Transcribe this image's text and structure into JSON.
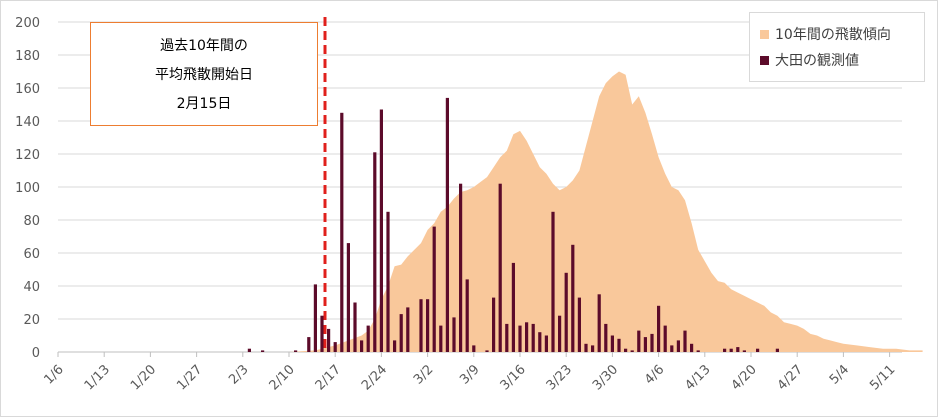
{
  "chart_data": {
    "type": "bar",
    "title": "",
    "xlabel": "",
    "ylabel": "",
    "ylim": [
      0,
      200
    ],
    "y_ticks": [
      0,
      20,
      40,
      60,
      80,
      100,
      120,
      140,
      160,
      180,
      200
    ],
    "x_ticks": [
      "1/6",
      "1/13",
      "1/20",
      "1/27",
      "2/3",
      "2/10",
      "2/17",
      "2/24",
      "3/2",
      "3/9",
      "3/16",
      "3/23",
      "3/30",
      "4/6",
      "4/13",
      "4/20",
      "4/27",
      "5/4",
      "5/11"
    ],
    "x_tick_rotation_deg": -45,
    "grid": "horizontal",
    "legend_position": "top-right",
    "colors": {
      "area": "#f9c89b",
      "bar": "#5c0b2a",
      "marker_line": "#e0201c",
      "annotation_border": "#ed7d31"
    },
    "series": [
      {
        "name": "10年間の飛散傾向",
        "type": "area",
        "values": [
          {
            "date": "1/6",
            "value": 0
          },
          {
            "date": "2/10",
            "value": 0
          },
          {
            "date": "2/14",
            "value": 1
          },
          {
            "date": "2/17",
            "value": 4
          },
          {
            "date": "2/21",
            "value": 10
          },
          {
            "date": "2/22",
            "value": 13
          },
          {
            "date": "2/23",
            "value": 20
          },
          {
            "date": "2/24",
            "value": 32
          },
          {
            "date": "2/25",
            "value": 40
          },
          {
            "date": "2/26",
            "value": 52
          },
          {
            "date": "2/27",
            "value": 53
          },
          {
            "date": "2/28",
            "value": 58
          },
          {
            "date": "3/1",
            "value": 66
          },
          {
            "date": "3/2",
            "value": 74
          },
          {
            "date": "3/3",
            "value": 78
          },
          {
            "date": "3/4",
            "value": 85
          },
          {
            "date": "3/5",
            "value": 88
          },
          {
            "date": "3/6",
            "value": 93
          },
          {
            "date": "3/7",
            "value": 97
          },
          {
            "date": "3/8",
            "value": 98
          },
          {
            "date": "3/9",
            "value": 100
          },
          {
            "date": "3/10",
            "value": 103
          },
          {
            "date": "3/11",
            "value": 106
          },
          {
            "date": "3/12",
            "value": 112
          },
          {
            "date": "3/13",
            "value": 118
          },
          {
            "date": "3/14",
            "value": 122
          },
          {
            "date": "3/15",
            "value": 132
          },
          {
            "date": "3/16",
            "value": 134
          },
          {
            "date": "3/17",
            "value": 128
          },
          {
            "date": "3/18",
            "value": 120
          },
          {
            "date": "3/19",
            "value": 112
          },
          {
            "date": "3/20",
            "value": 108
          },
          {
            "date": "3/21",
            "value": 102
          },
          {
            "date": "3/22",
            "value": 98
          },
          {
            "date": "3/23",
            "value": 100
          },
          {
            "date": "3/24",
            "value": 104
          },
          {
            "date": "3/25",
            "value": 110
          },
          {
            "date": "3/26",
            "value": 125
          },
          {
            "date": "3/27",
            "value": 140
          },
          {
            "date": "3/28",
            "value": 155
          },
          {
            "date": "3/29",
            "value": 163
          },
          {
            "date": "3/30",
            "value": 167
          },
          {
            "date": "3/31",
            "value": 170
          },
          {
            "date": "4/1",
            "value": 168
          },
          {
            "date": "4/2",
            "value": 150
          },
          {
            "date": "4/3",
            "value": 155
          },
          {
            "date": "4/4",
            "value": 145
          },
          {
            "date": "4/5",
            "value": 132
          },
          {
            "date": "4/6",
            "value": 118
          },
          {
            "date": "4/7",
            "value": 108
          },
          {
            "date": "4/8",
            "value": 100
          },
          {
            "date": "4/9",
            "value": 98
          },
          {
            "date": "4/10",
            "value": 92
          },
          {
            "date": "4/11",
            "value": 78
          },
          {
            "date": "4/12",
            "value": 62
          },
          {
            "date": "4/13",
            "value": 55
          },
          {
            "date": "4/14",
            "value": 48
          },
          {
            "date": "4/15",
            "value": 43
          },
          {
            "date": "4/16",
            "value": 42
          },
          {
            "date": "4/17",
            "value": 38
          },
          {
            "date": "4/18",
            "value": 36
          },
          {
            "date": "4/19",
            "value": 34
          },
          {
            "date": "4/20",
            "value": 32
          },
          {
            "date": "4/21",
            "value": 30
          },
          {
            "date": "4/22",
            "value": 28
          },
          {
            "date": "4/23",
            "value": 24
          },
          {
            "date": "4/24",
            "value": 22
          },
          {
            "date": "4/25",
            "value": 18
          },
          {
            "date": "4/26",
            "value": 17
          },
          {
            "date": "4/27",
            "value": 16
          },
          {
            "date": "4/28",
            "value": 14
          },
          {
            "date": "4/29",
            "value": 11
          },
          {
            "date": "4/30",
            "value": 10
          },
          {
            "date": "5/1",
            "value": 8
          },
          {
            "date": "5/2",
            "value": 7
          },
          {
            "date": "5/3",
            "value": 6
          },
          {
            "date": "5/4",
            "value": 5
          },
          {
            "date": "5/6",
            "value": 4
          },
          {
            "date": "5/8",
            "value": 3
          },
          {
            "date": "5/10",
            "value": 2
          },
          {
            "date": "5/12",
            "value": 2
          },
          {
            "date": "5/14",
            "value": 1
          },
          {
            "date": "5/16",
            "value": 1
          }
        ]
      },
      {
        "name": "大田の観測値",
        "type": "bar",
        "values": [
          {
            "date": "2/4",
            "value": 2
          },
          {
            "date": "2/6",
            "value": 1
          },
          {
            "date": "2/11",
            "value": 1
          },
          {
            "date": "2/13",
            "value": 9
          },
          {
            "date": "2/14",
            "value": 41
          },
          {
            "date": "2/15",
            "value": 22
          },
          {
            "date": "2/16",
            "value": 14
          },
          {
            "date": "2/17",
            "value": 6
          },
          {
            "date": "2/18",
            "value": 145
          },
          {
            "date": "2/19",
            "value": 66
          },
          {
            "date": "2/20",
            "value": 30
          },
          {
            "date": "2/21",
            "value": 7
          },
          {
            "date": "2/22",
            "value": 16
          },
          {
            "date": "2/23",
            "value": 121
          },
          {
            "date": "2/24",
            "value": 147
          },
          {
            "date": "2/25",
            "value": 85
          },
          {
            "date": "2/26",
            "value": 7
          },
          {
            "date": "2/27",
            "value": 23
          },
          {
            "date": "2/28",
            "value": 27
          },
          {
            "date": "3/1",
            "value": 32
          },
          {
            "date": "3/2",
            "value": 32
          },
          {
            "date": "3/3",
            "value": 76
          },
          {
            "date": "3/4",
            "value": 16
          },
          {
            "date": "3/5",
            "value": 154
          },
          {
            "date": "3/6",
            "value": 21
          },
          {
            "date": "3/7",
            "value": 102
          },
          {
            "date": "3/8",
            "value": 44
          },
          {
            "date": "3/9",
            "value": 4
          },
          {
            "date": "3/11",
            "value": 1
          },
          {
            "date": "3/12",
            "value": 33
          },
          {
            "date": "3/13",
            "value": 102
          },
          {
            "date": "3/14",
            "value": 17
          },
          {
            "date": "3/15",
            "value": 54
          },
          {
            "date": "3/16",
            "value": 16
          },
          {
            "date": "3/17",
            "value": 18
          },
          {
            "date": "3/18",
            "value": 17
          },
          {
            "date": "3/19",
            "value": 12
          },
          {
            "date": "3/20",
            "value": 10
          },
          {
            "date": "3/21",
            "value": 85
          },
          {
            "date": "3/22",
            "value": 22
          },
          {
            "date": "3/23",
            "value": 48
          },
          {
            "date": "3/24",
            "value": 65
          },
          {
            "date": "3/25",
            "value": 33
          },
          {
            "date": "3/26",
            "value": 5
          },
          {
            "date": "3/27",
            "value": 4
          },
          {
            "date": "3/28",
            "value": 35
          },
          {
            "date": "3/29",
            "value": 17
          },
          {
            "date": "3/30",
            "value": 10
          },
          {
            "date": "3/31",
            "value": 8
          },
          {
            "date": "4/1",
            "value": 2
          },
          {
            "date": "4/2",
            "value": 1
          },
          {
            "date": "4/3",
            "value": 13
          },
          {
            "date": "4/4",
            "value": 9
          },
          {
            "date": "4/5",
            "value": 11
          },
          {
            "date": "4/6",
            "value": 28
          },
          {
            "date": "4/7",
            "value": 16
          },
          {
            "date": "4/8",
            "value": 4
          },
          {
            "date": "4/9",
            "value": 7
          },
          {
            "date": "4/10",
            "value": 13
          },
          {
            "date": "4/11",
            "value": 5
          },
          {
            "date": "4/12",
            "value": 1
          },
          {
            "date": "4/16",
            "value": 2
          },
          {
            "date": "4/17",
            "value": 2
          },
          {
            "date": "4/18",
            "value": 3
          },
          {
            "date": "4/19",
            "value": 1
          },
          {
            "date": "4/21",
            "value": 2
          },
          {
            "date": "4/24",
            "value": 2
          }
        ]
      }
    ],
    "marker_line": {
      "date": "2/15",
      "style": "dashed"
    },
    "annotation": {
      "lines": [
        "過去10年間の",
        "平均飛散開始日",
        "2月15日"
      ]
    }
  }
}
